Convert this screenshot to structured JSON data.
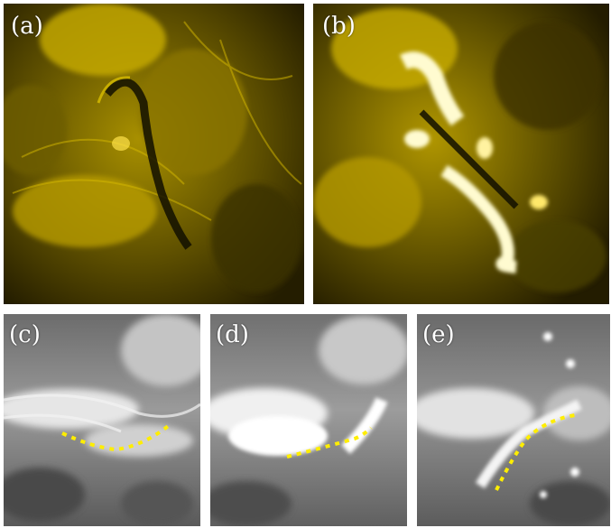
{
  "figure": {
    "panels": [
      {
        "label": "(a)",
        "colormap": "sdo-aia-yellow"
      },
      {
        "label": "(b)",
        "colormap": "sdo-aia-yellow"
      },
      {
        "label": "(c)",
        "colormap": "grayscale"
      },
      {
        "label": "(d)",
        "colormap": "grayscale"
      },
      {
        "label": "(e)",
        "colormap": "grayscale"
      }
    ],
    "colors": {
      "aia_dark": "#1a1500",
      "aia_mid": "#6b5a00",
      "aia_bright": "#e8c800",
      "aia_saturated": "#fffbd0",
      "gray_dark": "#3a3a3a",
      "gray_mid": "#8a8a8a",
      "gray_bright": "#f2f2f2",
      "trace_dots": "#ffee00"
    }
  }
}
